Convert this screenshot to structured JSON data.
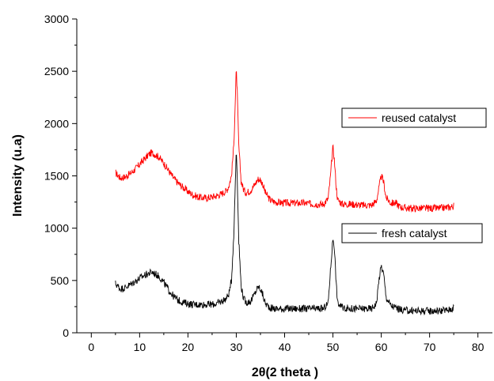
{
  "chart_data": {
    "type": "line",
    "title": "",
    "xlabel": "2θ(2 theta )",
    "ylabel": "Intensity (u.a)",
    "xlim": [
      -3,
      83
    ],
    "ylim": [
      0,
      3000
    ],
    "x_major_ticks": [
      0,
      10,
      20,
      30,
      40,
      50,
      60,
      70,
      80
    ],
    "x_minor_ticks": [
      5,
      15,
      25,
      35,
      45,
      55,
      65,
      75
    ],
    "y_major_ticks": [
      0,
      500,
      1000,
      1500,
      2000,
      2500,
      3000
    ],
    "y_minor_ticks": [
      250,
      750,
      1250,
      1750,
      2250,
      2750
    ],
    "x_tick_labels": [
      "0",
      "10",
      "20",
      "30",
      "40",
      "50",
      "60",
      "70",
      "80"
    ],
    "y_tick_labels": [
      "0",
      "500",
      "1000",
      "1500",
      "2000",
      "2500",
      "3000"
    ],
    "grid": false,
    "series": [
      {
        "name": "reused catalyst",
        "color": "#ff0000",
        "x": [
          5,
          6,
          7,
          8,
          9,
          10,
          11,
          12,
          12.5,
          13,
          14,
          15,
          16,
          17,
          18,
          19,
          20,
          21,
          22,
          23,
          24,
          25,
          26,
          27,
          28,
          28.5,
          29,
          29.5,
          30,
          30.2,
          30.5,
          31,
          31.5,
          32,
          33,
          34,
          34.5,
          35,
          35.5,
          36,
          37,
          38,
          40,
          42,
          44,
          46,
          48,
          49,
          49.5,
          50,
          50.3,
          50.7,
          51,
          52,
          54,
          56,
          58,
          59,
          59.5,
          60,
          60.5,
          61,
          62,
          63,
          64,
          66,
          68,
          70,
          72,
          74,
          75
        ],
        "y": [
          1530,
          1480,
          1490,
          1520,
          1560,
          1610,
          1660,
          1710,
          1720,
          1710,
          1680,
          1620,
          1550,
          1480,
          1430,
          1390,
          1350,
          1320,
          1300,
          1290,
          1290,
          1300,
          1310,
          1330,
          1360,
          1410,
          1500,
          1800,
          2520,
          2300,
          1800,
          1450,
          1370,
          1340,
          1360,
          1430,
          1470,
          1460,
          1420,
          1340,
          1270,
          1250,
          1240,
          1240,
          1240,
          1230,
          1230,
          1280,
          1500,
          1780,
          1650,
          1380,
          1270,
          1230,
          1230,
          1220,
          1220,
          1260,
          1380,
          1500,
          1440,
          1290,
          1240,
          1240,
          1200,
          1190,
          1190,
          1190,
          1190,
          1200,
          1210
        ]
      },
      {
        "name": "fresh catalyst",
        "color": "#000000",
        "x": [
          5,
          6,
          7,
          8,
          9,
          10,
          11,
          12,
          12.5,
          13,
          14,
          15,
          16,
          17,
          18,
          19,
          20,
          21,
          22,
          23,
          24,
          25,
          26,
          27,
          28,
          28.5,
          29,
          29.5,
          30,
          30.2,
          30.5,
          31,
          31.5,
          32,
          33,
          34,
          34.5,
          35,
          35.5,
          36,
          37,
          38,
          40,
          42,
          44,
          46,
          48,
          49,
          49.5,
          50,
          50.3,
          50.7,
          51,
          52,
          54,
          56,
          58,
          59,
          59.5,
          60,
          60.5,
          61,
          62,
          63,
          64,
          66,
          68,
          70,
          72,
          74,
          75
        ],
        "y": [
          470,
          420,
          430,
          460,
          490,
          520,
          550,
          570,
          580,
          570,
          540,
          480,
          410,
          350,
          310,
          290,
          280,
          270,
          270,
          270,
          270,
          270,
          280,
          300,
          330,
          380,
          500,
          950,
          1760,
          1500,
          900,
          450,
          330,
          290,
          300,
          390,
          440,
          420,
          360,
          280,
          240,
          230,
          230,
          230,
          230,
          230,
          230,
          280,
          600,
          910,
          820,
          450,
          280,
          240,
          230,
          230,
          230,
          280,
          500,
          640,
          560,
          340,
          260,
          240,
          220,
          210,
          210,
          210,
          210,
          220,
          240
        ]
      }
    ],
    "legend": [
      "reused catalyst",
      "fresh catalyst"
    ]
  }
}
